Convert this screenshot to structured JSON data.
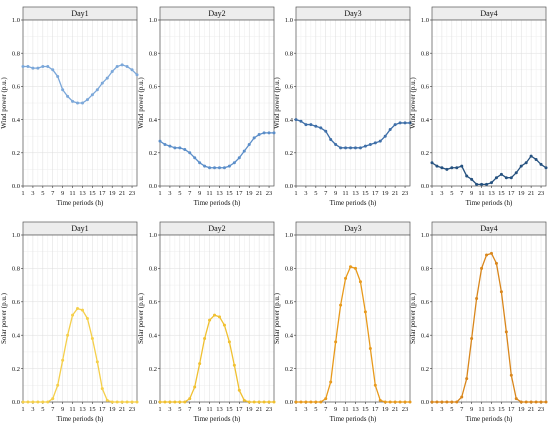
{
  "chart_data": [
    {
      "type": "line",
      "title": "Day1",
      "xlabel": "Time periods (h)",
      "ylabel": "Wind power (p.u.)",
      "xlim": [
        1,
        24
      ],
      "ylim": [
        0,
        1
      ],
      "x_ticks": [
        "1",
        "3",
        "5",
        "7",
        "9",
        "11",
        "13",
        "15",
        "17",
        "19",
        "21",
        "23"
      ],
      "y_ticks": [
        "0.0",
        "0.2",
        "0.4",
        "0.6",
        "0.8",
        "1.0"
      ],
      "grid": true,
      "color": "#7ba7d9",
      "x": [
        1,
        2,
        3,
        4,
        5,
        6,
        7,
        8,
        9,
        10,
        11,
        12,
        13,
        14,
        15,
        16,
        17,
        18,
        19,
        20,
        21,
        22,
        23,
        24
      ],
      "values": [
        0.72,
        0.72,
        0.71,
        0.71,
        0.72,
        0.72,
        0.7,
        0.66,
        0.58,
        0.54,
        0.51,
        0.5,
        0.5,
        0.52,
        0.55,
        0.58,
        0.62,
        0.65,
        0.69,
        0.72,
        0.73,
        0.72,
        0.7,
        0.67
      ]
    },
    {
      "type": "line",
      "title": "Day2",
      "xlabel": "Time periods (h)",
      "ylabel": "Wind power (p.u.)",
      "xlim": [
        1,
        24
      ],
      "ylim": [
        0,
        1
      ],
      "x_ticks": [
        "1",
        "3",
        "5",
        "7",
        "9",
        "11",
        "13",
        "15",
        "17",
        "19",
        "21",
        "23"
      ],
      "y_ticks": [
        "0.0",
        "0.2",
        "0.4",
        "0.6",
        "0.8",
        "1.0"
      ],
      "grid": true,
      "color": "#5b8ec9",
      "x": [
        1,
        2,
        3,
        4,
        5,
        6,
        7,
        8,
        9,
        10,
        11,
        12,
        13,
        14,
        15,
        16,
        17,
        18,
        19,
        20,
        21,
        22,
        23,
        24
      ],
      "values": [
        0.27,
        0.25,
        0.24,
        0.23,
        0.23,
        0.22,
        0.2,
        0.17,
        0.14,
        0.12,
        0.11,
        0.11,
        0.11,
        0.11,
        0.12,
        0.14,
        0.17,
        0.21,
        0.25,
        0.29,
        0.31,
        0.32,
        0.32,
        0.32
      ]
    },
    {
      "type": "line",
      "title": "Day3",
      "xlabel": "Time periods (h)",
      "ylabel": "Wind power (p.u.)",
      "xlim": [
        1,
        24
      ],
      "ylim": [
        0,
        1
      ],
      "x_ticks": [
        "1",
        "3",
        "5",
        "7",
        "9",
        "11",
        "13",
        "15",
        "17",
        "19",
        "21",
        "23"
      ],
      "y_ticks": [
        "0.0",
        "0.2",
        "0.4",
        "0.6",
        "0.8",
        "1.0"
      ],
      "grid": true,
      "color": "#3f6fa8",
      "x": [
        1,
        2,
        3,
        4,
        5,
        6,
        7,
        8,
        9,
        10,
        11,
        12,
        13,
        14,
        15,
        16,
        17,
        18,
        19,
        20,
        21,
        22,
        23,
        24
      ],
      "values": [
        0.4,
        0.39,
        0.37,
        0.37,
        0.36,
        0.35,
        0.33,
        0.28,
        0.25,
        0.23,
        0.23,
        0.23,
        0.23,
        0.23,
        0.24,
        0.25,
        0.26,
        0.27,
        0.3,
        0.34,
        0.37,
        0.38,
        0.38,
        0.38
      ]
    },
    {
      "type": "line",
      "title": "Day4",
      "xlabel": "Time periods (h)",
      "ylabel": "Wind power (p.u.)",
      "xlim": [
        1,
        24
      ],
      "ylim": [
        0,
        1
      ],
      "x_ticks": [
        "1",
        "3",
        "5",
        "7",
        "9",
        "11",
        "13",
        "15",
        "17",
        "19",
        "21",
        "23"
      ],
      "y_ticks": [
        "0.0",
        "0.2",
        "0.4",
        "0.6",
        "0.8",
        "1.0"
      ],
      "grid": true,
      "color": "#25517f",
      "x": [
        1,
        2,
        3,
        4,
        5,
        6,
        7,
        8,
        9,
        10,
        11,
        12,
        13,
        14,
        15,
        16,
        17,
        18,
        19,
        20,
        21,
        22,
        23,
        24
      ],
      "values": [
        0.14,
        0.12,
        0.11,
        0.1,
        0.11,
        0.11,
        0.12,
        0.06,
        0.04,
        0.01,
        0.01,
        0.01,
        0.02,
        0.05,
        0.07,
        0.05,
        0.05,
        0.08,
        0.12,
        0.14,
        0.18,
        0.16,
        0.13,
        0.11
      ]
    },
    {
      "type": "line",
      "title": "Day1",
      "xlabel": "Time periods (h)",
      "ylabel": "Solar power (p.u.)",
      "xlim": [
        1,
        24
      ],
      "ylim": [
        0,
        1
      ],
      "x_ticks": [
        "1",
        "3",
        "5",
        "7",
        "9",
        "11",
        "13",
        "15",
        "17",
        "19",
        "21",
        "23"
      ],
      "y_ticks": [
        "0.0",
        "0.2",
        "0.4",
        "0.6",
        "0.8",
        "1.0"
      ],
      "grid": true,
      "color": "#f5cf4a",
      "x": [
        1,
        2,
        3,
        4,
        5,
        6,
        7,
        8,
        9,
        10,
        11,
        12,
        13,
        14,
        15,
        16,
        17,
        18,
        19,
        20,
        21,
        22,
        23,
        24
      ],
      "values": [
        0,
        0,
        0,
        0,
        0,
        0,
        0.02,
        0.1,
        0.25,
        0.4,
        0.52,
        0.56,
        0.55,
        0.5,
        0.38,
        0.24,
        0.08,
        0.01,
        0,
        0,
        0,
        0,
        0,
        0
      ]
    },
    {
      "type": "line",
      "title": "Day2",
      "xlabel": "Time periods (h)",
      "ylabel": "Solar power (p.u.)",
      "xlim": [
        1,
        24
      ],
      "ylim": [
        0,
        1
      ],
      "x_ticks": [
        "1",
        "3",
        "5",
        "7",
        "9",
        "11",
        "13",
        "15",
        "17",
        "19",
        "21",
        "23"
      ],
      "y_ticks": [
        "0.0",
        "0.2",
        "0.4",
        "0.6",
        "0.8",
        "1.0"
      ],
      "grid": true,
      "color": "#f0c030",
      "x": [
        1,
        2,
        3,
        4,
        5,
        6,
        7,
        8,
        9,
        10,
        11,
        12,
        13,
        14,
        15,
        16,
        17,
        18,
        19,
        20,
        21,
        22,
        23,
        24
      ],
      "values": [
        0,
        0,
        0,
        0,
        0,
        0,
        0.02,
        0.09,
        0.23,
        0.38,
        0.49,
        0.52,
        0.51,
        0.46,
        0.36,
        0.22,
        0.07,
        0.01,
        0,
        0,
        0,
        0,
        0,
        0
      ]
    },
    {
      "type": "line",
      "title": "Day3",
      "xlabel": "Time periods (h)",
      "ylabel": "Solar power (p.u.)",
      "xlim": [
        1,
        24
      ],
      "ylim": [
        0,
        1
      ],
      "x_ticks": [
        "1",
        "3",
        "5",
        "7",
        "9",
        "11",
        "13",
        "15",
        "17",
        "19",
        "21",
        "23"
      ],
      "y_ticks": [
        "0.0",
        "0.2",
        "0.4",
        "0.6",
        "0.8",
        "1.0"
      ],
      "grid": true,
      "color": "#e89a1c",
      "x": [
        1,
        2,
        3,
        4,
        5,
        6,
        7,
        8,
        9,
        10,
        11,
        12,
        13,
        14,
        15,
        16,
        17,
        18,
        19,
        20,
        21,
        22,
        23,
        24
      ],
      "values": [
        0,
        0,
        0,
        0,
        0,
        0,
        0.02,
        0.12,
        0.36,
        0.58,
        0.74,
        0.81,
        0.8,
        0.72,
        0.54,
        0.32,
        0.1,
        0.01,
        0,
        0,
        0,
        0,
        0,
        0
      ]
    },
    {
      "type": "line",
      "title": "Day4",
      "xlabel": "Time periods (h)",
      "ylabel": "Solar power (p.u.)",
      "xlim": [
        1,
        24
      ],
      "ylim": [
        0,
        1
      ],
      "x_ticks": [
        "1",
        "3",
        "5",
        "7",
        "9",
        "11",
        "13",
        "15",
        "17",
        "19",
        "21",
        "23"
      ],
      "y_ticks": [
        "0.0",
        "0.2",
        "0.4",
        "0.6",
        "0.8",
        "1.0"
      ],
      "grid": true,
      "color": "#d9861b",
      "x": [
        1,
        2,
        3,
        4,
        5,
        6,
        7,
        8,
        9,
        10,
        11,
        12,
        13,
        14,
        15,
        16,
        17,
        18,
        19,
        20,
        21,
        22,
        23,
        24
      ],
      "values": [
        0,
        0,
        0,
        0,
        0,
        0,
        0.03,
        0.14,
        0.38,
        0.62,
        0.8,
        0.88,
        0.89,
        0.83,
        0.66,
        0.42,
        0.16,
        0.02,
        0,
        0,
        0,
        0,
        0,
        0
      ]
    }
  ]
}
